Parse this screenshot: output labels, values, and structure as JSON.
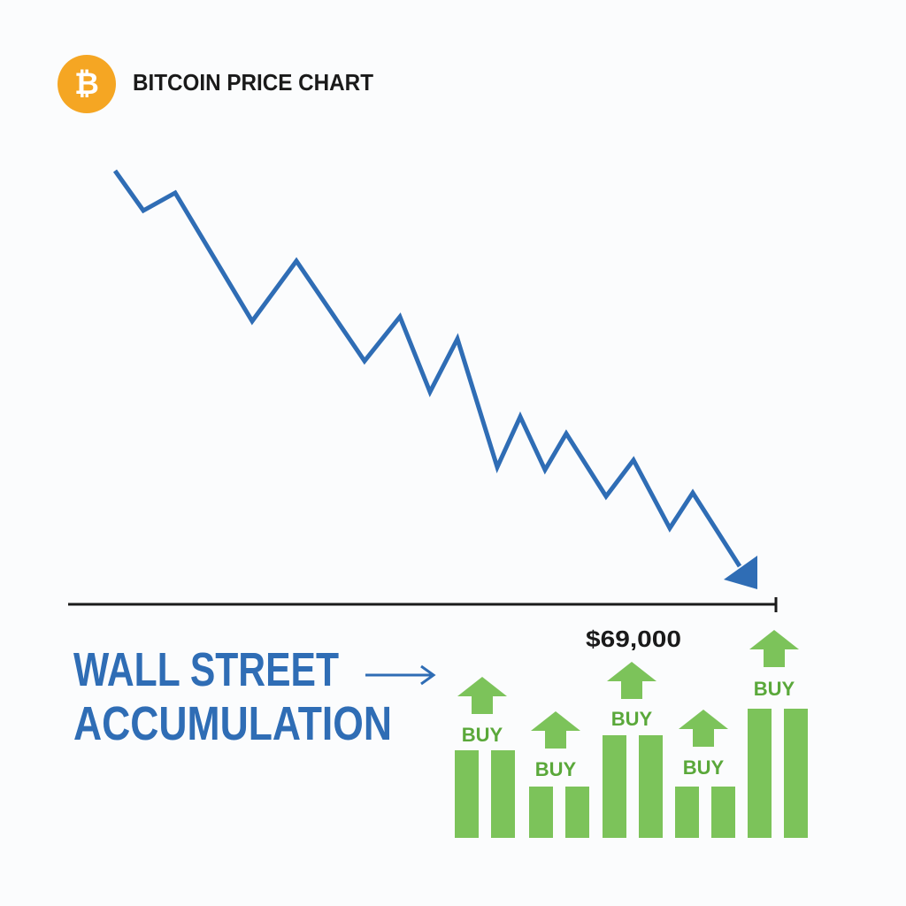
{
  "header": {
    "icon": "₿",
    "title": "BITCOIN PRICE CHART"
  },
  "price_label": "$69,000",
  "caption": {
    "line1": "WALL STREET",
    "line2": "ACCUMULATION"
  },
  "buy_labels": [
    "BUY",
    "BUY",
    "BUY",
    "BUY",
    "BUY"
  ]
}
